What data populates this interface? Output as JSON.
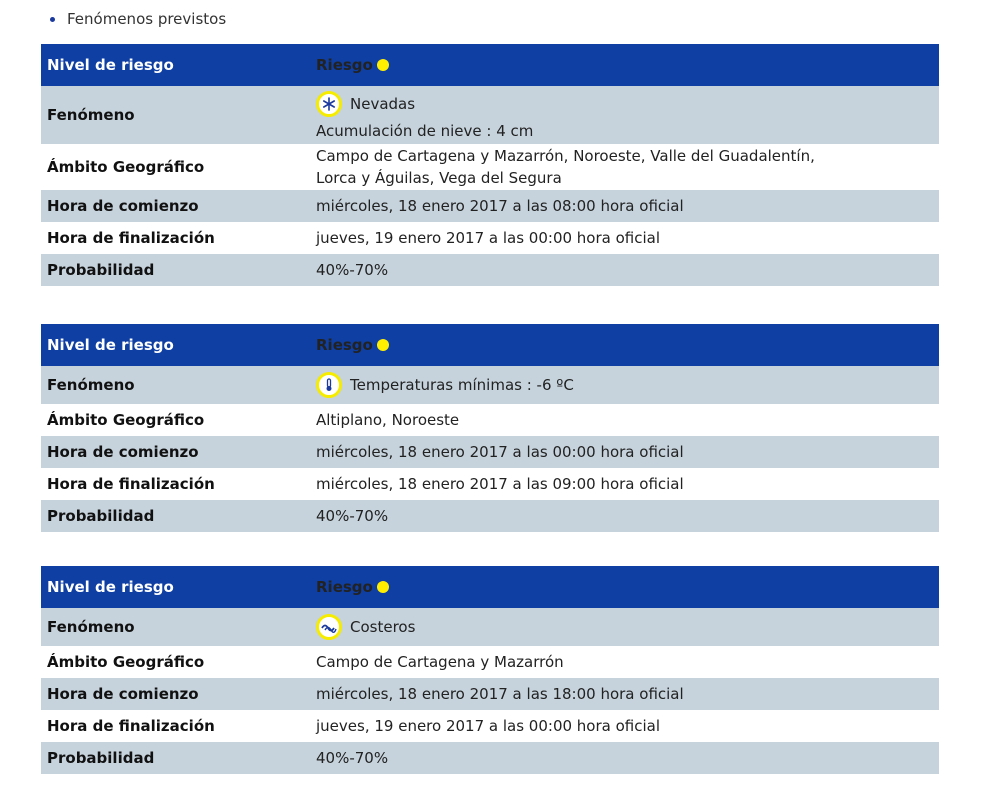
{
  "section_title": "Fenómenos previstos",
  "labels": {
    "nivel": "Nivel de riesgo",
    "riesgo": "Riesgo",
    "fenomeno": "Fenómeno",
    "ambito": "Ámbito Geográfico",
    "comienzo": "Hora de comienzo",
    "finalizacion": "Hora de finalización",
    "probabilidad": "Probabilidad"
  },
  "risk_color": "#ffee00",
  "warnings": [
    {
      "icon": "snowflake-icon",
      "fenomeno": "Nevadas",
      "detalle": "Acumulación de nieve : 4 cm",
      "ambito": "Campo de Cartagena y Mazarrón, Noroeste, Valle del Guadalentín, Lorca y Águilas, Vega del Segura",
      "comienzo": "miércoles, 18 enero 2017 a las 08:00 hora oficial",
      "finalizacion": "jueves, 19 enero 2017 a las 00:00 hora oficial",
      "probabilidad": "40%-70%"
    },
    {
      "icon": "thermometer-cold-icon",
      "fenomeno": "Temperaturas mínimas : -6 ºC",
      "ambito": "Altiplano, Noroeste",
      "comienzo": "miércoles, 18 enero 2017 a las 00:00 hora oficial",
      "finalizacion": "miércoles, 18 enero 2017 a las 09:00 hora oficial",
      "probabilidad": "40%-70%"
    },
    {
      "icon": "waves-icon",
      "fenomeno": "Costeros",
      "ambito": "Campo de Cartagena y Mazarrón",
      "comienzo": "miércoles, 18 enero 2017 a las 18:00 hora oficial",
      "finalizacion": "jueves, 19 enero 2017 a las 00:00 hora oficial",
      "probabilidad": "40%-70%"
    }
  ]
}
